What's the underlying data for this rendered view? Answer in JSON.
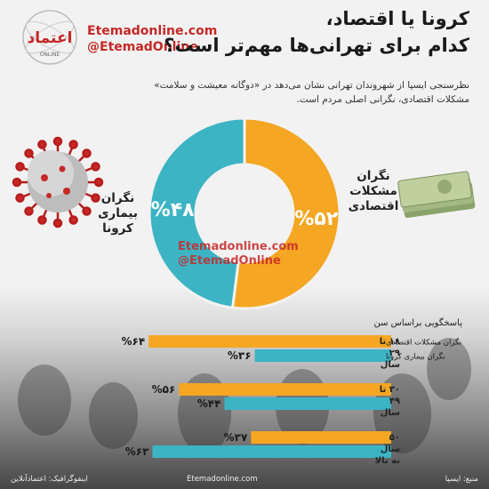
{
  "header": {
    "title_line1": "کرونا یا اقتصاد،",
    "title_line2": "کدام برای تهرانی‌ها مهم‌تر است؟",
    "brand_site": "Etemadonline.com",
    "brand_handle": "@EtemadOnline",
    "logo_text": "اعتماد",
    "logo_sub": "ONLINE"
  },
  "subtitle": "نظرسنجی ایسپا از شهروندان تهرانی نشان می‌دهد در «دوگانه معیشت و سلامت» مشکلات اقتصادی، نگرانی اصلی مردم است.",
  "watermark": {
    "line1": "Etemadonline.com",
    "line2": "@EtemadOnline"
  },
  "colors": {
    "economy": "#f5a623",
    "corona": "#3cb4c4",
    "brand_red": "#c62828"
  },
  "icons": {
    "virus": "coronavirus-icon",
    "money": "banknotes-icon"
  },
  "chart_data": [
    {
      "type": "pie",
      "variant": "donut",
      "slices": [
        {
          "name": "نگران مشکلات اقتصادی",
          "value": 52,
          "label": "%۵۲",
          "color": "#f5a623"
        },
        {
          "name": "نگران بیماری کرونا",
          "value": 48,
          "label": "%۴۸",
          "color": "#3cb4c4"
        }
      ],
      "slice_labels": [
        "نگران\nمشکلات\nاقتصادی",
        "نگران\nبیماری\nکرونا"
      ]
    },
    {
      "type": "bar",
      "orientation": "horizontal",
      "title": "پاسخگویی براساس سن",
      "categories": [
        "۱۸ تا ۲۹ سال",
        "۳۰ تا ۴۹ سال",
        "۵۰ سال به بالا"
      ],
      "series": [
        {
          "name": "نگران مشکلات اقتصادی",
          "color": "#f5a623",
          "values": [
            64,
            56,
            37
          ],
          "labels": [
            "%۶۴",
            "%۵۶",
            "%۳۷"
          ]
        },
        {
          "name": "نگران بیماری کرونا",
          "color": "#3cb4c4",
          "values": [
            36,
            44,
            63
          ],
          "labels": [
            "%۳۶",
            "%۴۴",
            "%۶۳"
          ]
        }
      ]
    }
  ],
  "footer": {
    "credit": "اینفوگرافیک: اعتمادآنلاین",
    "site": "Etemadonline.com",
    "source": "منبع: ایسپا"
  }
}
